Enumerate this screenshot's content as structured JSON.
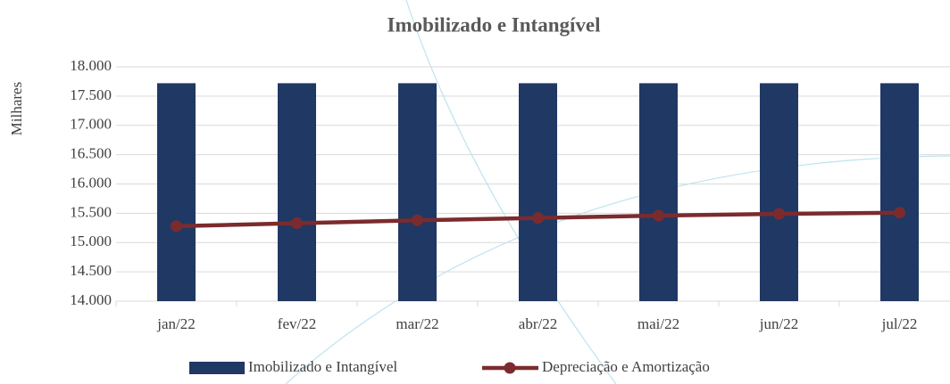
{
  "chart_data": {
    "type": "bar",
    "title": "Imobilizado e Intangível",
    "y_label": "Milhares",
    "categories": [
      "jan/22",
      "fev/22",
      "mar/22",
      "abr/22",
      "mai/22",
      "jun/22",
      "jul/22"
    ],
    "series": [
      {
        "name": "Imobilizado e Intangível",
        "type": "bar",
        "color": "#203864",
        "values": [
          17720,
          17720,
          17720,
          17720,
          17720,
          17720,
          17720
        ]
      },
      {
        "name": "Depreciação e Amortização",
        "type": "line",
        "color": "#7b2b2e",
        "values": [
          15280,
          15330,
          15380,
          15420,
          15460,
          15490,
          15510
        ]
      }
    ],
    "ylim": [
      14000,
      18000
    ],
    "yticks": [
      {
        "value": 14000,
        "label": "14.000"
      },
      {
        "value": 14500,
        "label": "14.500"
      },
      {
        "value": 15000,
        "label": "15.000"
      },
      {
        "value": 15500,
        "label": "15.500"
      },
      {
        "value": 16000,
        "label": "16.000"
      },
      {
        "value": 16500,
        "label": "16.500"
      },
      {
        "value": 17000,
        "label": "17.000"
      },
      {
        "value": 17500,
        "label": "17.500"
      },
      {
        "value": 18000,
        "label": "18.000"
      }
    ],
    "grid": true,
    "legend": "bottom"
  }
}
